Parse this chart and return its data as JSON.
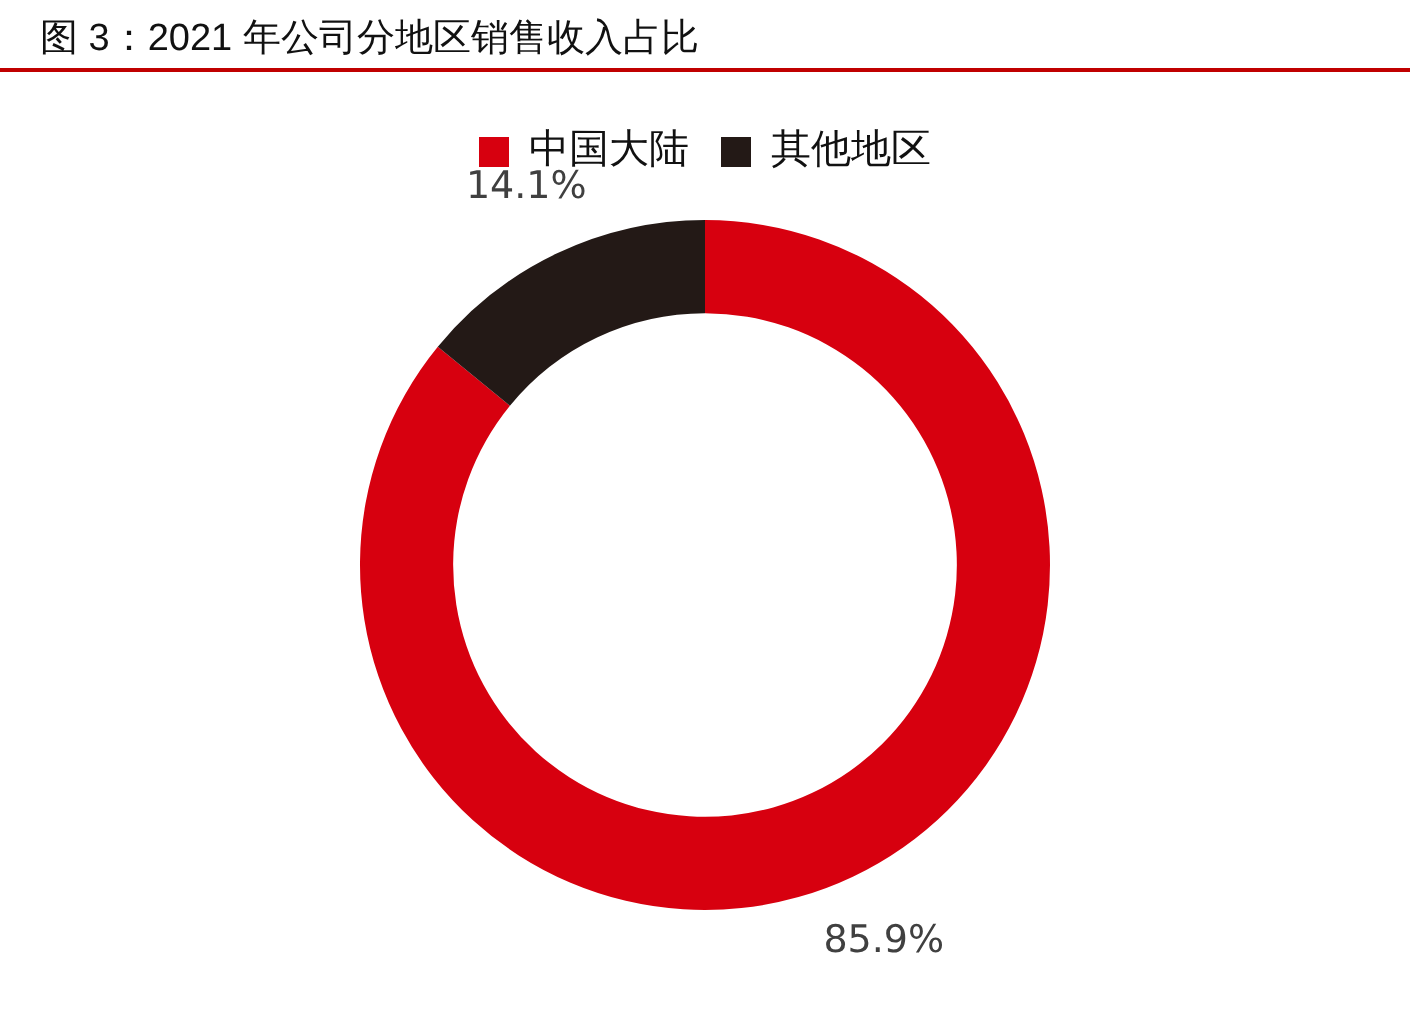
{
  "chart_data": {
    "type": "donut",
    "title": "图 3：2021 年公司分地区销售收入占比",
    "categories": [
      "中国大陆",
      "其他地区"
    ],
    "values": [
      85.9,
      14.1
    ],
    "colors": [
      "#d7000f",
      "#231916"
    ],
    "value_labels": [
      "85.9%",
      "14.1%"
    ],
    "legend": "top"
  }
}
